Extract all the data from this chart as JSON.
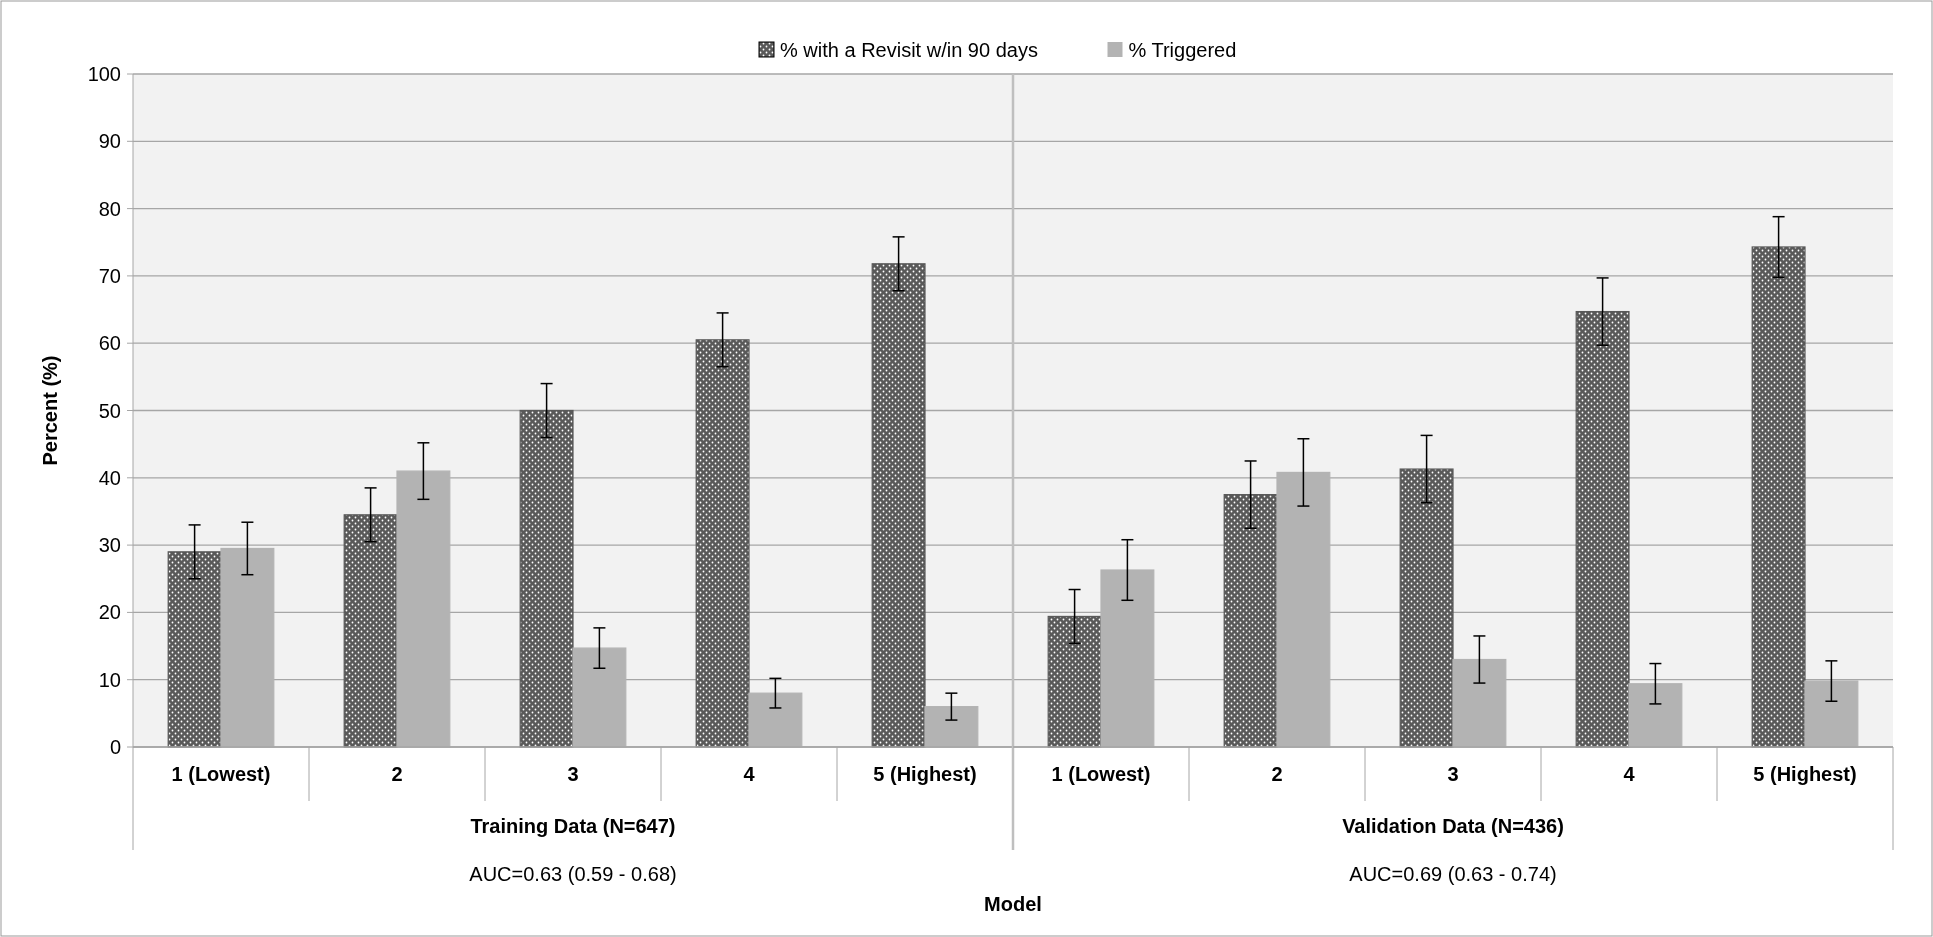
{
  "chart_data": [
    {
      "type": "bar",
      "xlabel": "Model",
      "ylabel": "Percent (%)",
      "categories": [
        "1 (Lowest)",
        "2",
        "3",
        "4",
        "5 (Highest)"
      ],
      "series": [
        {
          "name": "% with a Revisit w/in 90 days",
          "color": "#595959",
          "values": [
            29,
            34.5,
            50,
            60.5,
            71.8
          ],
          "errors": [
            4,
            4,
            4,
            4,
            4
          ]
        },
        {
          "name": "% Triggered",
          "color": "#b3b3b3",
          "values": [
            29.5,
            41,
            14.7,
            8,
            6
          ],
          "errors": [
            3.9,
            4.2,
            3,
            2.2,
            2
          ]
        }
      ],
      "ylim": [
        0,
        100
      ],
      "yticks": [
        0,
        10,
        20,
        30,
        40,
        50,
        60,
        70,
        80,
        90,
        100
      ],
      "grid": "y",
      "legend": "top",
      "annotations": [
        "Training Data (N=647)",
        "AUC=0.63 (0.59 - 0.68)"
      ]
    },
    {
      "type": "bar",
      "categories": [
        "1 (Lowest)",
        "2",
        "3",
        "4",
        "5 (Highest)"
      ],
      "series": [
        {
          "color": "#595959",
          "values": [
            19.4,
            37.5,
            41.3,
            64.7,
            74.3
          ],
          "errors": [
            4,
            5,
            5,
            5,
            4.5
          ]
        },
        {
          "color": "#b3b3b3",
          "values": [
            26.3,
            40.8,
            13,
            9.4,
            9.8
          ],
          "errors": [
            4.5,
            5,
            3.5,
            3,
            3
          ]
        }
      ],
      "ylim": [
        0,
        100
      ],
      "yticks": [
        0,
        10,
        20,
        30,
        40,
        50,
        60,
        70,
        80,
        90,
        100
      ],
      "grid": "y",
      "tick_labels": "x",
      "annotations": [
        "Validation Data (N=436)",
        "AUC=0.69 (0.63 - 0.74)"
      ]
    }
  ]
}
